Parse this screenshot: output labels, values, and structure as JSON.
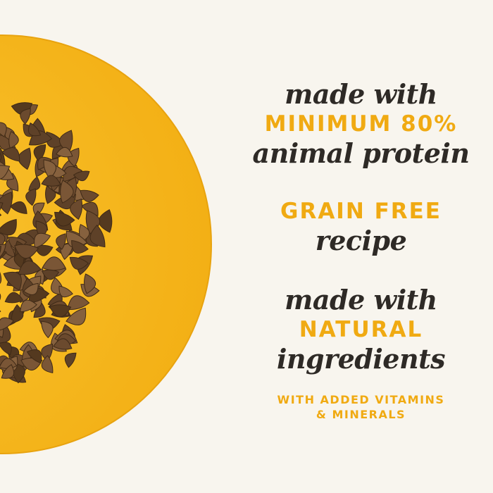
{
  "colors": {
    "background": "#f8f5ee",
    "plate": "#f6b81a",
    "accent_text": "#f0aa12",
    "script_text": "#2e2a26",
    "kibble": "#6b4a2e"
  },
  "claims": [
    {
      "lead": "made with",
      "highlight": "MINIMUM 80%",
      "tail": "animal protein"
    },
    {
      "highlight": "GRAIN FREE",
      "tail": "recipe"
    },
    {
      "lead": "made with",
      "highlight": "NATURAL",
      "tail": "ingredients"
    }
  ],
  "footnote": {
    "line1": "WITH ADDED VITAMINS",
    "line2": "& MINERALS"
  }
}
